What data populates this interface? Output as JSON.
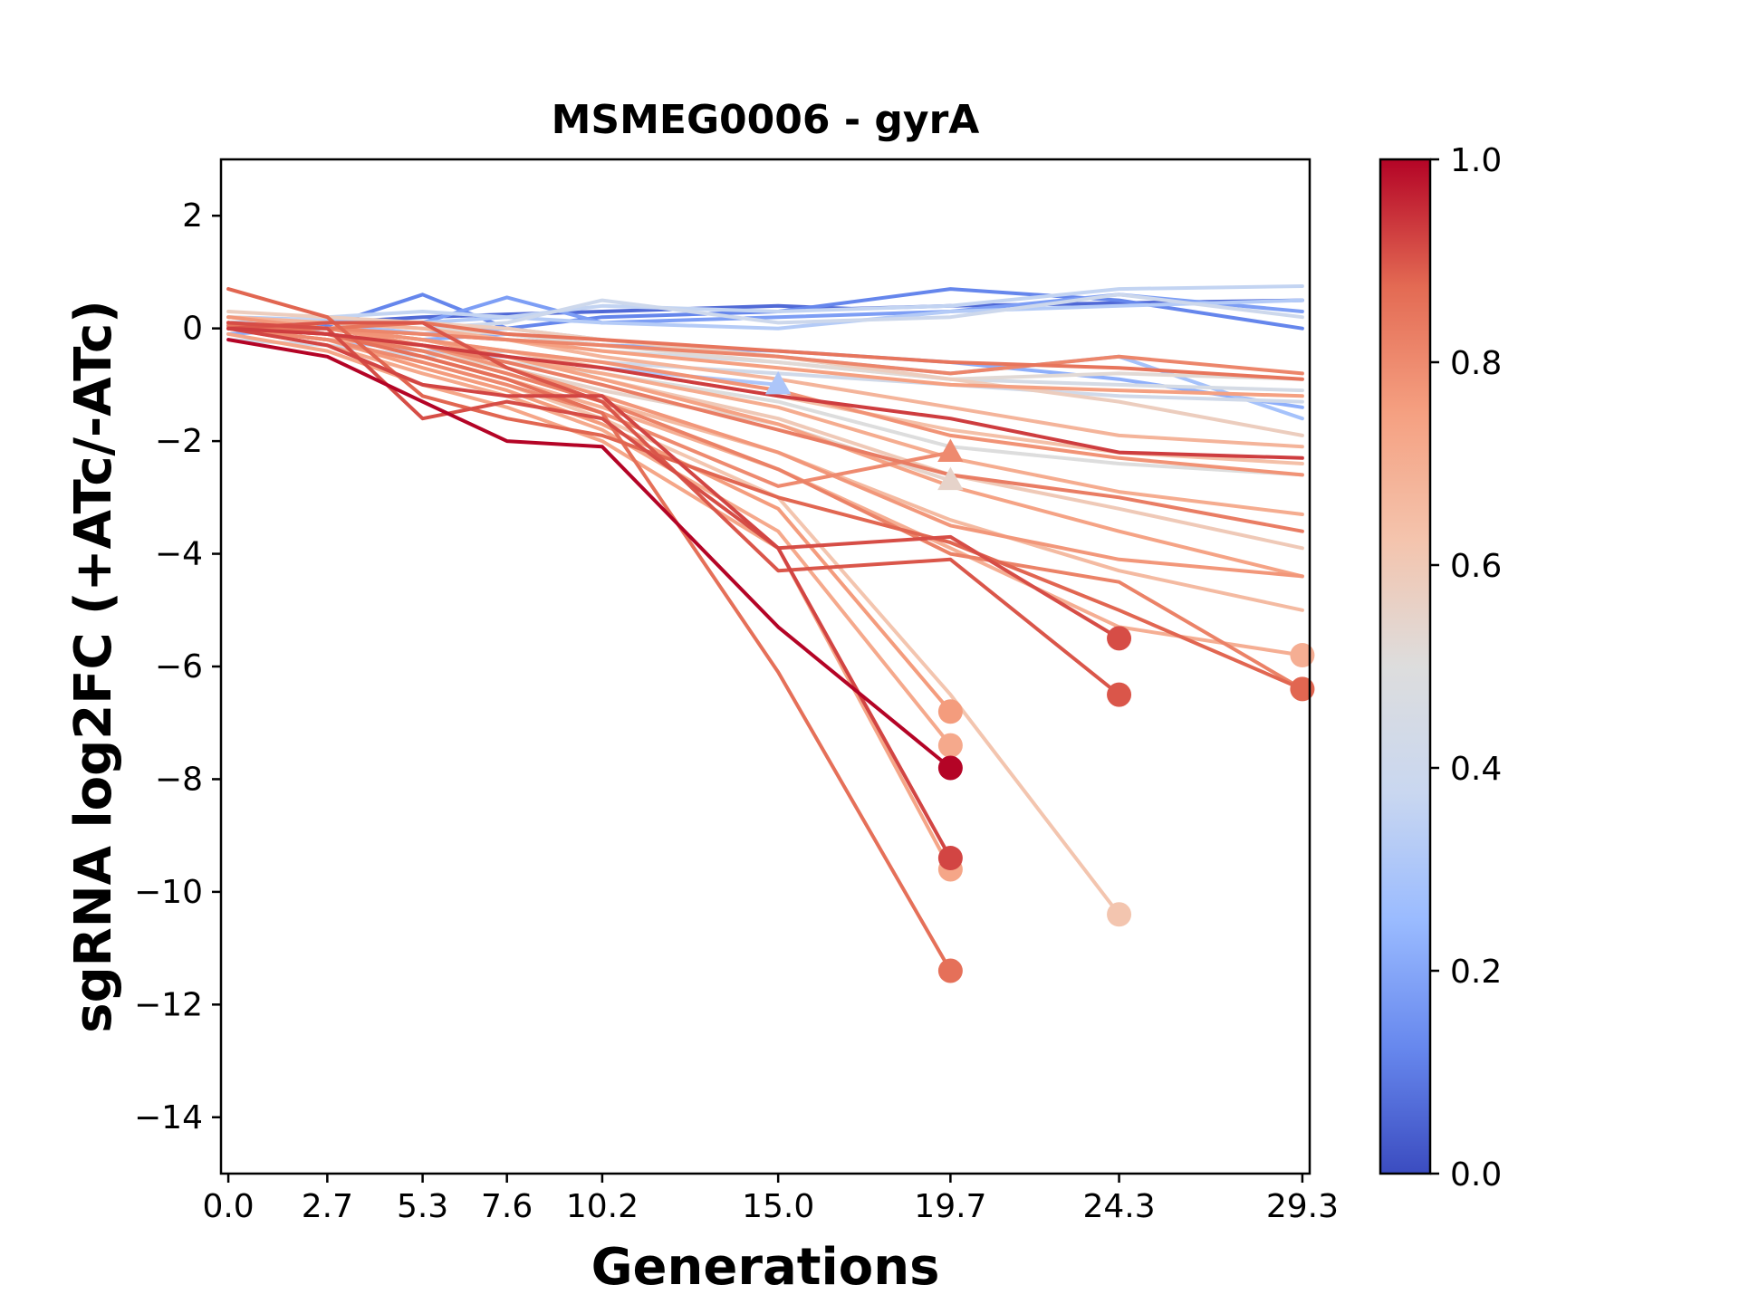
{
  "chart_data": {
    "type": "line",
    "title": "MSMEG0006 - gyrA",
    "xlabel": "Generations",
    "ylabel": "sgRNA log2FC (+ATc/-ATc)",
    "xlim": [
      -0.2,
      29.5
    ],
    "ylim": [
      -15,
      3
    ],
    "xticks": [
      0.0,
      2.7,
      5.3,
      7.6,
      10.2,
      15.0,
      19.7,
      24.3,
      29.3
    ],
    "xtick_labels": [
      "0.0",
      "2.7",
      "5.3",
      "7.6",
      "10.2",
      "15.0",
      "19.7",
      "24.3",
      "29.3"
    ],
    "yticks": [
      2,
      0,
      -2,
      -4,
      -6,
      -8,
      -10,
      -12,
      -14
    ],
    "ytick_labels": [
      "2",
      "0",
      "−2",
      "−4",
      "−6",
      "−8",
      "−10",
      "−12",
      "−14"
    ],
    "colorbar": {
      "cmap": "coolwarm",
      "range": [
        0.0,
        1.0
      ],
      "ticks": [
        0.0,
        0.2,
        0.4,
        0.6,
        0.8,
        1.0
      ],
      "tick_labels": [
        "0.0",
        "0.2",
        "0.4",
        "0.6",
        "0.8",
        "1.0"
      ],
      "stops": [
        "#3b4cc0",
        "#6788ee",
        "#9abbff",
        "#c9d7f0",
        "#dddddd",
        "#f4c4ad",
        "#f5a081",
        "#e36a53",
        "#b40426"
      ]
    },
    "series": [
      {
        "c": 0.06,
        "x": [
          0,
          2.7,
          5.3,
          7.6,
          10.2,
          15.0,
          17.0,
          19.7,
          24.3,
          29.3
        ],
        "y": [
          0.05,
          0.1,
          0.2,
          0.25,
          0.3,
          0.4,
          0.35,
          0.4,
          0.45,
          0.5
        ]
      },
      {
        "c": 0.12,
        "x": [
          0,
          2.7,
          5.3,
          7.6,
          10.2,
          15.0,
          19.7,
          24.3,
          29.3
        ],
        "y": [
          0.1,
          0.05,
          0.6,
          0.0,
          0.2,
          0.3,
          0.7,
          0.5,
          0.0
        ]
      },
      {
        "c": 0.18,
        "x": [
          0,
          2.7,
          5.3,
          7.6,
          10.2,
          15.0,
          19.7,
          24.3,
          29.3
        ],
        "y": [
          0.0,
          0.1,
          0.1,
          0.55,
          0.1,
          0.2,
          0.3,
          0.6,
          0.3
        ]
      },
      {
        "c": 0.22,
        "x": [
          0,
          2.7,
          5.3,
          7.6,
          10.2,
          15.0,
          19.7,
          24.3,
          29.3
        ],
        "y": [
          -0.1,
          0.0,
          -0.2,
          -0.1,
          -0.3,
          -0.4,
          -0.6,
          -0.9,
          -1.4
        ]
      },
      {
        "c": 0.28,
        "x": [
          0,
          2.7,
          5.3,
          7.6,
          10.2,
          15.0,
          19.7,
          24.3,
          29.3
        ],
        "y": [
          0.05,
          0.1,
          -0.1,
          0.0,
          -0.2,
          -0.5,
          -0.8,
          -0.5,
          -1.6
        ]
      },
      {
        "c": 0.3,
        "x": [
          0,
          2.7,
          5.3,
          7.6,
          10.2,
          15.0
        ],
        "y": [
          0.0,
          -0.2,
          -0.4,
          -0.5,
          -0.7,
          -1.0
        ],
        "marker": "triangle"
      },
      {
        "c": 0.32,
        "x": [
          0,
          2.7,
          5.3,
          7.6,
          10.2,
          15.0,
          19.7,
          24.3,
          29.3
        ],
        "y": [
          0.2,
          0.15,
          0.1,
          0.2,
          0.1,
          0.0,
          0.3,
          0.4,
          0.5
        ]
      },
      {
        "c": 0.36,
        "x": [
          0,
          2.7,
          5.3,
          7.6,
          10.2,
          15.0,
          19.7,
          24.3,
          29.3
        ],
        "y": [
          0.1,
          0.2,
          0.3,
          0.2,
          0.4,
          0.3,
          0.4,
          0.7,
          0.75
        ]
      },
      {
        "c": 0.4,
        "x": [
          0,
          2.7,
          5.3,
          7.6,
          10.2,
          15.0,
          19.7,
          24.3,
          29.3
        ],
        "y": [
          0.0,
          0.1,
          0.0,
          0.1,
          0.5,
          0.1,
          0.2,
          0.6,
          0.2
        ]
      },
      {
        "c": 0.42,
        "x": [
          0,
          2.7,
          5.3,
          7.6,
          10.2,
          15.0,
          19.7,
          24.3,
          29.3
        ],
        "y": [
          -0.2,
          -0.3,
          -0.5,
          -0.4,
          -0.6,
          -0.8,
          -1.0,
          -1.2,
          -1.3
        ]
      },
      {
        "c": 0.45,
        "x": [
          0,
          2.7,
          5.3,
          7.6,
          10.2,
          15.0,
          19.7,
          24.3,
          29.3
        ],
        "y": [
          0.1,
          0.0,
          -0.1,
          -0.2,
          -0.4,
          -0.6,
          -0.9,
          -1.0,
          -1.1
        ]
      },
      {
        "c": 0.5,
        "x": [
          0,
          2.7,
          5.3,
          7.6,
          10.2,
          15.0,
          19.7,
          24.3,
          29.3
        ],
        "y": [
          0.0,
          -0.1,
          -0.3,
          -0.6,
          -0.8,
          -1.3,
          -2.1,
          -2.4,
          -2.6
        ]
      },
      {
        "c": 0.52,
        "x": [
          0,
          2.7,
          5.3,
          7.6,
          10.2,
          15.0,
          19.7,
          24.3,
          29.3
        ],
        "y": [
          0.2,
          0.1,
          0.0,
          -0.1,
          -0.3,
          -0.6,
          -0.9,
          -0.8,
          -0.9
        ]
      },
      {
        "c": 0.55,
        "x": [
          0,
          2.7,
          5.3,
          7.6,
          10.2,
          15.0,
          19.7
        ],
        "y": [
          0.1,
          -0.1,
          -0.4,
          -0.7,
          -1.1,
          -1.7,
          -2.7
        ],
        "marker": "triangle"
      },
      {
        "c": 0.58,
        "x": [
          0,
          2.7,
          5.3,
          7.6,
          10.2,
          15.0,
          19.7,
          24.3,
          29.3
        ],
        "y": [
          0.3,
          0.2,
          0.1,
          0.0,
          -0.2,
          -0.5,
          -0.9,
          -1.3,
          -1.9
        ]
      },
      {
        "c": 0.6,
        "x": [
          0,
          2.7,
          5.3,
          7.6,
          10.2,
          15.0,
          19.7,
          24.3,
          29.3
        ],
        "y": [
          0.2,
          0.0,
          -0.3,
          -0.5,
          -0.9,
          -1.6,
          -2.6,
          -3.2,
          -3.9
        ]
      },
      {
        "c": 0.62,
        "x": [
          0,
          2.7,
          5.3,
          7.6,
          10.2,
          15.0,
          19.7,
          24.3
        ],
        "y": [
          0.0,
          -0.2,
          -0.6,
          -1.0,
          -1.6,
          -3.0,
          -6.5,
          -10.4
        ],
        "marker": "circle"
      },
      {
        "c": 0.64,
        "x": [
          0,
          2.7,
          5.3,
          7.6,
          10.2,
          15.0,
          19.7,
          24.3,
          29.3
        ],
        "y": [
          0.1,
          0.0,
          -0.2,
          -0.4,
          -0.7,
          -1.2,
          -1.8,
          -2.2,
          -2.4
        ]
      },
      {
        "c": 0.66,
        "x": [
          0,
          2.7,
          5.3,
          7.6,
          10.2,
          15.0,
          19.7,
          24.3,
          29.3
        ],
        "y": [
          0.0,
          -0.1,
          -0.4,
          -0.8,
          -1.3,
          -2.2,
          -3.4,
          -4.3,
          -5.0
        ]
      },
      {
        "c": 0.68,
        "x": [
          0,
          2.7,
          5.3,
          7.6,
          10.2,
          15.0,
          19.7,
          24.3,
          29.3
        ],
        "y": [
          0.2,
          0.1,
          0.0,
          -0.2,
          -0.5,
          -0.9,
          -1.4,
          -1.9,
          -2.1
        ]
      },
      {
        "c": 0.7,
        "x": [
          0,
          2.7,
          5.3,
          7.6,
          10.2,
          15.0,
          19.7,
          24.3,
          29.3
        ],
        "y": [
          0.1,
          -0.1,
          -0.5,
          -0.9,
          -1.4,
          -2.5,
          -3.9,
          -5.3,
          -5.8
        ],
        "marker": "circle"
      },
      {
        "c": 0.71,
        "x": [
          0,
          2.7,
          5.3,
          7.6,
          10.2,
          15.0,
          19.7,
          24.3,
          29.3
        ],
        "y": [
          0.0,
          -0.2,
          -0.3,
          -0.5,
          -0.8,
          -1.4,
          -2.3,
          -2.9,
          -3.3
        ]
      },
      {
        "c": 0.72,
        "x": [
          0,
          2.7,
          5.3,
          7.6,
          10.2,
          15.0,
          19.7
        ],
        "y": [
          0.0,
          -0.3,
          -0.8,
          -1.2,
          -1.8,
          -3.6,
          -7.4
        ],
        "marker": "circle"
      },
      {
        "c": 0.73,
        "x": [
          0,
          2.7,
          5.3,
          7.6,
          10.2,
          15.0,
          19.7
        ],
        "y": [
          -0.1,
          -0.4,
          -1.0,
          -1.4,
          -2.0,
          -3.9,
          -9.6
        ],
        "marker": "circle"
      },
      {
        "c": 0.74,
        "x": [
          0,
          2.7,
          5.3,
          7.6,
          10.2,
          15.0,
          19.7,
          24.3,
          29.3
        ],
        "y": [
          0.1,
          0.0,
          -0.2,
          -0.5,
          -0.9,
          -1.7,
          -2.8,
          -3.6,
          -4.4
        ]
      },
      {
        "c": 0.75,
        "x": [
          0,
          2.7,
          5.3,
          7.6,
          10.2,
          15.0,
          19.7,
          24.3,
          29.3
        ],
        "y": [
          0.0,
          0.0,
          -0.1,
          -0.2,
          -0.4,
          -0.7,
          -1.0,
          -1.1,
          -1.2
        ]
      },
      {
        "c": 0.76,
        "x": [
          0,
          2.7,
          5.3,
          7.6,
          10.2,
          15.0,
          19.7
        ],
        "y": [
          0.0,
          -0.2,
          -0.7,
          -1.1,
          -1.7,
          -3.2,
          -6.8
        ],
        "marker": "circle"
      },
      {
        "c": 0.77,
        "x": [
          0,
          2.7,
          5.3,
          7.6,
          10.2,
          15.0,
          19.7,
          24.3,
          29.3
        ],
        "y": [
          0.2,
          0.0,
          -0.3,
          -0.7,
          -1.2,
          -2.2,
          -3.5,
          -4.1,
          -4.4
        ]
      },
      {
        "c": 0.78,
        "x": [
          0,
          2.7,
          5.3,
          7.6,
          10.2,
          15.0,
          19.7,
          24.3,
          29.3
        ],
        "y": [
          0.1,
          0.0,
          -0.2,
          -0.4,
          -0.6,
          -1.1,
          -1.9,
          -2.3,
          -2.6
        ]
      },
      {
        "c": 0.8,
        "x": [
          0,
          2.7,
          5.3,
          7.6,
          10.2,
          15.0,
          19.7
        ],
        "y": [
          0.0,
          -0.2,
          -0.6,
          -1.0,
          -1.5,
          -2.8,
          -2.2
        ],
        "marker": "triangle"
      },
      {
        "c": 0.81,
        "x": [
          0,
          2.7,
          5.3,
          7.6,
          10.2,
          15.0,
          19.7,
          24.3,
          29.3
        ],
        "y": [
          0.0,
          0.0,
          -0.1,
          -0.2,
          -0.3,
          -0.5,
          -0.8,
          -0.5,
          -0.8
        ]
      },
      {
        "c": 0.82,
        "x": [
          0,
          2.7,
          5.3,
          7.6,
          10.2,
          15.0,
          19.7,
          24.3,
          29.3
        ],
        "y": [
          0.1,
          -0.1,
          -0.4,
          -0.8,
          -1.3,
          -2.5,
          -4.0,
          -4.5,
          -6.4
        ]
      },
      {
        "c": 0.83,
        "x": [
          0,
          2.7,
          5.3,
          7.6,
          10.2,
          15.0,
          19.7,
          24.3,
          29.3
        ],
        "y": [
          0.0,
          -0.1,
          -0.3,
          -0.6,
          -1.0,
          -1.8,
          -2.6,
          -3.0,
          -3.6
        ]
      },
      {
        "c": 0.85,
        "x": [
          0,
          2.7,
          5.3,
          7.6,
          10.2,
          15.0,
          19.7,
          24.3,
          29.3
        ],
        "y": [
          0.05,
          0.0,
          0.1,
          -0.1,
          -0.2,
          -0.4,
          -0.6,
          -0.7,
          -0.9
        ]
      },
      {
        "c": 0.86,
        "x": [
          0,
          2.7,
          5.3,
          7.6,
          10.2,
          15.0,
          19.7
        ],
        "y": [
          0.1,
          -0.1,
          -0.5,
          -0.9,
          -1.5,
          -6.1,
          -11.4
        ],
        "marker": "circle"
      },
      {
        "c": 0.88,
        "x": [
          0,
          2.7,
          5.3,
          7.6,
          10.2,
          15.0,
          19.7,
          24.3,
          29.3
        ],
        "y": [
          0.7,
          0.2,
          -1.2,
          -1.6,
          -1.9,
          -3.0,
          -3.8,
          -5.0,
          -6.4
        ],
        "marker": "circle"
      },
      {
        "c": 0.9,
        "x": [
          0,
          2.7,
          5.3,
          7.6,
          10.2,
          15.0,
          19.7,
          24.3
        ],
        "y": [
          0.0,
          0.1,
          0.1,
          -0.7,
          -1.3,
          -4.3,
          -4.1,
          -6.5
        ],
        "marker": "circle"
      },
      {
        "c": 0.91,
        "x": [
          0,
          2.7,
          5.3,
          7.6,
          10.2,
          15.0,
          19.7,
          24.3
        ],
        "y": [
          0.1,
          0.0,
          -1.6,
          -1.3,
          -1.6,
          -3.9,
          -3.7,
          -5.5
        ],
        "marker": "circle"
      },
      {
        "c": 0.92,
        "x": [
          0,
          2.7,
          5.3,
          7.6,
          10.2,
          15.0,
          19.7
        ],
        "y": [
          0.0,
          -0.3,
          -1.0,
          -1.2,
          -1.2,
          -3.9,
          -9.4
        ],
        "marker": "circle"
      },
      {
        "c": 0.93,
        "x": [
          0,
          2.7,
          5.3,
          7.6,
          10.2,
          15.0,
          19.7,
          24.3,
          29.3
        ],
        "y": [
          0.0,
          -0.1,
          -0.3,
          -0.5,
          -0.7,
          -1.2,
          -1.6,
          -2.2,
          -2.3
        ]
      },
      {
        "c": 1.0,
        "x": [
          0,
          2.7,
          5.3,
          7.6,
          10.2,
          15.0,
          19.7
        ],
        "y": [
          -0.2,
          -0.5,
          -1.3,
          -2.0,
          -2.1,
          -5.3,
          -7.8
        ],
        "marker": "circle"
      }
    ]
  }
}
